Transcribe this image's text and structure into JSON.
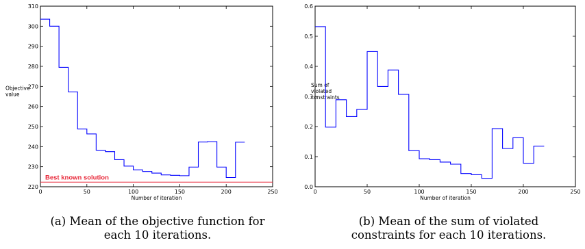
{
  "chart_data": [
    {
      "type": "line",
      "step": true,
      "xlabel": "Number of iteration",
      "ylabel": [
        "Objective",
        "value"
      ],
      "xlim": [
        0,
        250
      ],
      "ylim": [
        220,
        310
      ],
      "xticks": [
        0,
        50,
        100,
        150,
        200,
        250
      ],
      "yticks": [
        220,
        230,
        240,
        250,
        260,
        270,
        280,
        290,
        300,
        310
      ],
      "grid": false,
      "series": [
        {
          "color": "#0000ff",
          "x": [
            0,
            10,
            20,
            30,
            40,
            50,
            60,
            70,
            80,
            90,
            100,
            110,
            120,
            130,
            140,
            150,
            160,
            170,
            180,
            190,
            200,
            210,
            220
          ],
          "y": [
            303.5,
            300,
            279.5,
            267.3,
            248.8,
            246.3,
            238.2,
            237.5,
            233.5,
            230.3,
            228.4,
            227.6,
            226.8,
            225.9,
            225.7,
            225.5,
            229.8,
            242.3,
            242.5,
            229.8,
            224.6,
            242.2,
            242.2
          ]
        }
      ],
      "reference_line": {
        "label": "Best known solution",
        "y": 222.3,
        "color": "#e8293a"
      },
      "caption": [
        "(a) Mean of the objective function for",
        "each 10 iterations."
      ]
    },
    {
      "type": "line",
      "step": true,
      "xlabel": "Number of iteration",
      "ylabel": [
        "Sum of",
        "violated",
        "constraints"
      ],
      "xlim": [
        0,
        250
      ],
      "ylim": [
        0,
        0.6
      ],
      "xticks": [
        0,
        50,
        100,
        150,
        200,
        250
      ],
      "yticks": [
        0.0,
        0.1,
        0.2,
        0.3,
        0.4,
        0.5,
        0.6
      ],
      "ytick_labels": [
        "0.0",
        "0.1",
        "0.2",
        "0.3",
        "0.4",
        "0.5",
        "0.6"
      ],
      "grid": false,
      "series": [
        {
          "color": "#0000ff",
          "x": [
            0,
            10,
            20,
            30,
            40,
            50,
            60,
            70,
            80,
            90,
            100,
            110,
            120,
            130,
            140,
            150,
            160,
            170,
            180,
            190,
            200,
            210,
            220
          ],
          "y": [
            0.532,
            0.198,
            0.289,
            0.233,
            0.257,
            0.449,
            0.333,
            0.388,
            0.307,
            0.12,
            0.093,
            0.09,
            0.082,
            0.075,
            0.044,
            0.04,
            0.028,
            0.193,
            0.127,
            0.163,
            0.078,
            0.135,
            0.135
          ]
        }
      ],
      "caption": [
        "(b) Mean of the sum of violated",
        "constraints for each 10 iterations."
      ]
    }
  ]
}
